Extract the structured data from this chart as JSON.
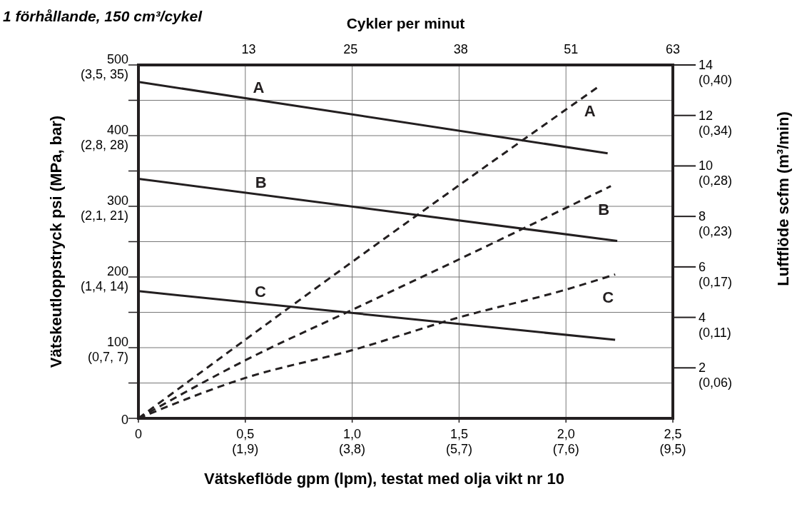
{
  "chart_data": {
    "type": "line",
    "title": "1 förhållande, 150 cm³/cykel",
    "xlabel": "Vätskeflöde gpm (lpm), testat med olja vikt nr 10",
    "ylabel": "Vätskeutloppstryck psi (MPa, bar)",
    "y2label": "Luftflöde scfm (m³/min)",
    "x2label": "Cykler per minut",
    "xlim": [
      0,
      2.5
    ],
    "xticks": [
      0,
      {
        "value": 0.5,
        "label": "0,5"
      },
      {
        "value": 1.0,
        "label": "1,0"
      },
      {
        "value": 1.5,
        "label": "1,5"
      },
      {
        "value": 2.0,
        "label": "2,0"
      },
      {
        "value": 2.5,
        "label": "2,5"
      }
    ],
    "annotations": [
      "(1,9)",
      "(3,8)",
      "(5,7)",
      "(7,6)",
      "(9,5)",
      "(0,7, 7)",
      "(1,4, 14)",
      "(2,1, 21)",
      "(2,8, 28)",
      "(3,5, 35)",
      "(0,06)",
      "(0,11)",
      "(0,17)",
      "(0,23)",
      "(0,28)",
      "(0,34)",
      "(0,40)"
    ],
    "x2lim": [
      0,
      63
    ],
    "x2ticks": [
      13,
      25,
      38,
      51,
      63
    ],
    "ylim": [
      0,
      500
    ],
    "yticks": [
      0,
      {
        "value": 50,
        "label": null
      },
      100,
      {
        "value": 150,
        "label": null
      },
      200,
      {
        "value": 250,
        "label": null
      },
      300,
      {
        "value": 350,
        "label": null
      },
      400,
      {
        "value": 450,
        "label": null
      },
      500
    ],
    "y2lim": [
      0,
      14
    ],
    "y2ticks": [
      2,
      4,
      6,
      8,
      10,
      12,
      14
    ],
    "grid": true,
    "series": [
      {
        "name": "A",
        "color": "#231f20",
        "line_style": "solid",
        "x": [
          0,
          2.195
        ],
        "values": [
          476,
          375
        ]
      },
      {
        "name": "B",
        "color": "#231f20",
        "line_style": "solid",
        "x": [
          0,
          2.24
        ],
        "values": [
          339,
          251
        ]
      },
      {
        "name": "C",
        "color": "#231f20",
        "line_style": "solid",
        "x": [
          0,
          2.23
        ],
        "values": [
          180,
          111
        ]
      },
      {
        "name": "A",
        "color": "#231f20",
        "line_style": "dashed",
        "axis": "y2",
        "x": [
          0,
          1.0,
          2.145
        ],
        "values": [
          0,
          6.2,
          13.1
        ]
      },
      {
        "name": "B",
        "color": "#231f20",
        "line_style": "dashed",
        "axis": "y2",
        "x": [
          0,
          0.5,
          1.0,
          1.5,
          2.21
        ],
        "values": [
          0,
          2.3,
          4.3,
          6.3,
          9.2
        ]
      },
      {
        "name": "C",
        "color": "#231f20",
        "line_style": "dashed",
        "axis": "y2",
        "x": [
          0,
          0.5,
          1.0,
          1.5,
          2.0,
          2.23
        ],
        "values": [
          0,
          1.6,
          2.7,
          4.0,
          5.1,
          5.7
        ]
      }
    ]
  }
}
